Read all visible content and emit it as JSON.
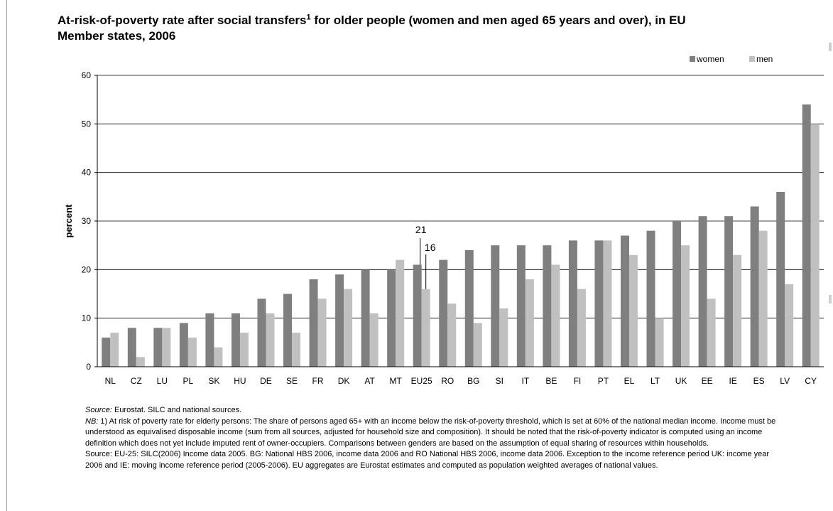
{
  "title": {
    "main": "At-risk-of-poverty rate after social transfers",
    "footnote_mark": "1",
    "rest": " for older people (women and men aged 65 years and over), in EU Member states, 2006"
  },
  "colors": {
    "women": "#7f7f7f",
    "men": "#c0c0c0",
    "axis": "#000000",
    "grid": "#000000"
  },
  "chart_data": {
    "type": "bar",
    "title": "At-risk-of-poverty rate after social transfers1 for older people (women and men aged 65 years and over), in EU Member states, 2006",
    "xlabel": "",
    "ylabel": "percent",
    "ylim": [
      0,
      60
    ],
    "yticks": [
      0,
      10,
      20,
      30,
      40,
      50,
      60
    ],
    "grid": "horizontal",
    "legend_position": "top-right",
    "categories": [
      "NL",
      "CZ",
      "LU",
      "PL",
      "SK",
      "HU",
      "DE",
      "SE",
      "FR",
      "DK",
      "AT",
      "MT",
      "EU25",
      "RO",
      "BG",
      "SI",
      "IT",
      "BE",
      "FI",
      "PT",
      "EL",
      "LT",
      "UK",
      "EE",
      "IE",
      "ES",
      "LV",
      "CY"
    ],
    "series": [
      {
        "name": "women",
        "values": [
          6,
          8,
          8,
          9,
          11,
          11,
          14,
          15,
          18,
          19,
          20,
          20,
          21,
          22,
          24,
          25,
          25,
          25,
          26,
          26,
          27,
          28,
          30,
          31,
          31,
          33,
          36,
          54
        ]
      },
      {
        "name": "men",
        "values": [
          7,
          2,
          8,
          6,
          4,
          7,
          11,
          7,
          14,
          16,
          11,
          22,
          16,
          13,
          9,
          12,
          18,
          21,
          16,
          26,
          23,
          10,
          25,
          14,
          23,
          28,
          17,
          50
        ]
      }
    ],
    "annotations": [
      {
        "text": "21",
        "category": "EU25",
        "series": "women"
      },
      {
        "text": "16",
        "category": "EU25",
        "series": "men"
      }
    ]
  },
  "notes": {
    "source_label": "Source:",
    "source_text": " Eurostat. SILC and national sources.",
    "nb_label": "NB:",
    "nb_text": " 1) At risk of poverty rate for elderly persons: The share of persons aged 65+ with an income below the risk-of-poverty threshold, which is set at 60% of the national median income. Income must be understood as equivalised disposable income (sum from all sources, adjusted for household size and composition). It should be noted that the risk-of-poverty indicator is computed using an income definition which does not yet include imputed rent of owner-occupiers. Comparisons between genders are based on the assumption of equal sharing of resources within households.",
    "source2": "Source: EU-25: SILC(2006)  Income data 2005. BG: National HBS 2006, income data 2006 and RO National HBS 2006, income data 2006. Exception to the income reference period UK: income year 2006 and  IE: moving income reference period (2005-2006).  EU aggregates are Eurostat estimates and computed as population weighted averages of national values."
  }
}
